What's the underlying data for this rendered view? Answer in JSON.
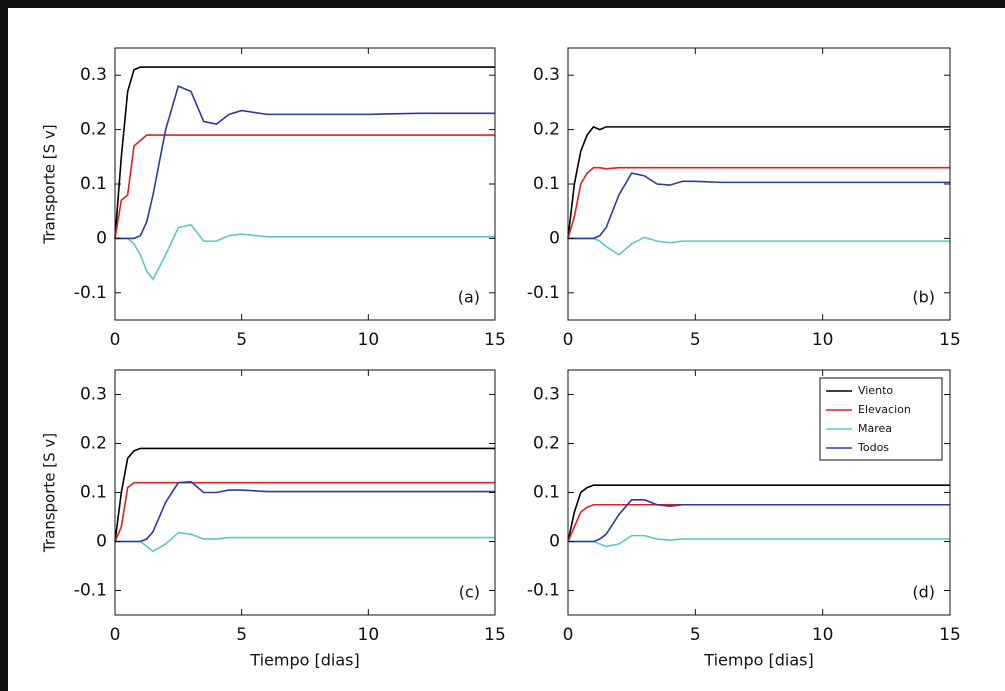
{
  "chart_data": [
    {
      "type": "line",
      "ylabel": "Transporte [S v]",
      "annotation": "(a)",
      "x": [
        0,
        0.25,
        0.5,
        0.75,
        1,
        1.25,
        1.5,
        2,
        2.5,
        3,
        3.5,
        4,
        4.5,
        5,
        6,
        7,
        8,
        10,
        12,
        15
      ],
      "xlim": [
        0,
        15
      ],
      "xticks": [
        0,
        5,
        10,
        15
      ],
      "ylim": [
        -0.15,
        0.35
      ],
      "yticks": [
        -0.1,
        0,
        0.1,
        0.2,
        0.3
      ],
      "series": [
        {
          "name": "Viento",
          "color": "#000000",
          "values": [
            0,
            0.15,
            0.27,
            0.31,
            0.315,
            0.315,
            0.315,
            0.315,
            0.315,
            0.315,
            0.315,
            0.315,
            0.315,
            0.315,
            0.315,
            0.315,
            0.315,
            0.315,
            0.315,
            0.315
          ]
        },
        {
          "name": "Elevacion",
          "color": "#e02020",
          "values": [
            0,
            0.07,
            0.08,
            0.17,
            0.18,
            0.19,
            0.19,
            0.19,
            0.19,
            0.19,
            0.19,
            0.19,
            0.19,
            0.19,
            0.19,
            0.19,
            0.19,
            0.19,
            0.19,
            0.19
          ]
        },
        {
          "name": "Marea",
          "color": "#5bc8c8",
          "values": [
            0,
            0,
            0,
            -0.01,
            -0.03,
            -0.06,
            -0.075,
            -0.03,
            0.02,
            0.025,
            -0.005,
            -0.005,
            0.005,
            0.008,
            0.003,
            0.003,
            0.003,
            0.003,
            0.003,
            0.003
          ]
        },
        {
          "name": "Todos",
          "color": "#2a3aa0",
          "values": [
            0,
            0,
            0,
            0,
            0.005,
            0.03,
            0.08,
            0.2,
            0.28,
            0.27,
            0.215,
            0.21,
            0.228,
            0.235,
            0.228,
            0.228,
            0.228,
            0.228,
            0.23,
            0.23
          ]
        }
      ]
    },
    {
      "type": "line",
      "annotation": "(b)",
      "x": [
        0,
        0.25,
        0.5,
        0.75,
        1,
        1.25,
        1.5,
        2,
        2.5,
        3,
        3.5,
        4,
        4.5,
        5,
        6,
        7,
        8,
        10,
        12,
        15
      ],
      "xlim": [
        0,
        15
      ],
      "xticks": [
        0,
        5,
        10,
        15
      ],
      "ylim": [
        -0.15,
        0.35
      ],
      "yticks": [
        -0.1,
        0,
        0.1,
        0.2,
        0.3
      ],
      "series": [
        {
          "name": "Viento",
          "color": "#000000",
          "values": [
            0,
            0.1,
            0.16,
            0.19,
            0.205,
            0.2,
            0.205,
            0.205,
            0.205,
            0.205,
            0.205,
            0.205,
            0.205,
            0.205,
            0.205,
            0.205,
            0.205,
            0.205,
            0.205,
            0.205
          ]
        },
        {
          "name": "Elevacion",
          "color": "#e02020",
          "values": [
            0,
            0.04,
            0.1,
            0.12,
            0.13,
            0.13,
            0.128,
            0.13,
            0.13,
            0.13,
            0.13,
            0.13,
            0.13,
            0.13,
            0.13,
            0.13,
            0.13,
            0.13,
            0.13,
            0.13
          ]
        },
        {
          "name": "Marea",
          "color": "#5bc8c8",
          "values": [
            0,
            0,
            0,
            0,
            0,
            -0.005,
            -0.015,
            -0.03,
            -0.01,
            0.002,
            -0.005,
            -0.008,
            -0.005,
            -0.005,
            -0.005,
            -0.005,
            -0.005,
            -0.005,
            -0.005,
            -0.005
          ]
        },
        {
          "name": "Todos",
          "color": "#2a3aa0",
          "values": [
            0,
            0,
            0,
            0,
            0,
            0.005,
            0.02,
            0.08,
            0.12,
            0.115,
            0.1,
            0.098,
            0.105,
            0.105,
            0.103,
            0.103,
            0.103,
            0.103,
            0.103,
            0.103
          ]
        }
      ]
    },
    {
      "type": "line",
      "ylabel": "Transporte [S v]",
      "xlabel": "Tiempo [dias]",
      "annotation": "(c)",
      "x": [
        0,
        0.25,
        0.5,
        0.75,
        1,
        1.25,
        1.5,
        2,
        2.5,
        3,
        3.5,
        4,
        4.5,
        5,
        6,
        7,
        8,
        10,
        12,
        15
      ],
      "xlim": [
        0,
        15
      ],
      "xticks": [
        0,
        5,
        10,
        15
      ],
      "ylim": [
        -0.15,
        0.35
      ],
      "yticks": [
        -0.1,
        0,
        0.1,
        0.2,
        0.3
      ],
      "series": [
        {
          "name": "Viento",
          "color": "#000000",
          "values": [
            0,
            0.1,
            0.17,
            0.185,
            0.19,
            0.19,
            0.19,
            0.19,
            0.19,
            0.19,
            0.19,
            0.19,
            0.19,
            0.19,
            0.19,
            0.19,
            0.19,
            0.19,
            0.19,
            0.19
          ]
        },
        {
          "name": "Elevacion",
          "color": "#e02020",
          "values": [
            0,
            0.03,
            0.11,
            0.12,
            0.12,
            0.12,
            0.12,
            0.12,
            0.12,
            0.12,
            0.12,
            0.12,
            0.12,
            0.12,
            0.12,
            0.12,
            0.12,
            0.12,
            0.12,
            0.12
          ]
        },
        {
          "name": "Marea",
          "color": "#5bc8c8",
          "values": [
            0,
            0,
            0,
            0,
            0,
            -0.01,
            -0.02,
            -0.005,
            0.018,
            0.015,
            0.005,
            0.005,
            0.008,
            0.008,
            0.008,
            0.008,
            0.008,
            0.008,
            0.008,
            0.008
          ]
        },
        {
          "name": "Todos",
          "color": "#2a3aa0",
          "values": [
            0,
            0,
            0,
            0,
            0,
            0.005,
            0.02,
            0.08,
            0.12,
            0.122,
            0.1,
            0.1,
            0.105,
            0.105,
            0.102,
            0.102,
            0.102,
            0.102,
            0.102,
            0.102
          ]
        }
      ]
    },
    {
      "type": "line",
      "xlabel": "Tiempo [dias]",
      "annotation": "(d)",
      "legend": "upper right",
      "x": [
        0,
        0.25,
        0.5,
        0.75,
        1,
        1.25,
        1.5,
        2,
        2.5,
        3,
        3.5,
        4,
        4.5,
        5,
        6,
        7,
        8,
        10,
        12,
        15
      ],
      "xlim": [
        0,
        15
      ],
      "xticks": [
        0,
        5,
        10,
        15
      ],
      "ylim": [
        -0.15,
        0.35
      ],
      "yticks": [
        -0.1,
        0,
        0.1,
        0.2,
        0.3
      ],
      "series": [
        {
          "name": "Viento",
          "color": "#000000",
          "values": [
            0,
            0.06,
            0.1,
            0.11,
            0.115,
            0.115,
            0.115,
            0.115,
            0.115,
            0.115,
            0.115,
            0.115,
            0.115,
            0.115,
            0.115,
            0.115,
            0.115,
            0.115,
            0.115,
            0.115
          ]
        },
        {
          "name": "Elevacion",
          "color": "#e02020",
          "values": [
            0,
            0.03,
            0.06,
            0.07,
            0.075,
            0.075,
            0.075,
            0.075,
            0.075,
            0.075,
            0.075,
            0.075,
            0.075,
            0.075,
            0.075,
            0.075,
            0.075,
            0.075,
            0.075,
            0.075
          ]
        },
        {
          "name": "Marea",
          "color": "#5bc8c8",
          "values": [
            0,
            0,
            0,
            0,
            0,
            -0.005,
            -0.01,
            -0.005,
            0.012,
            0.012,
            0.005,
            0.003,
            0.005,
            0.005,
            0.005,
            0.005,
            0.005,
            0.005,
            0.005,
            0.005
          ]
        },
        {
          "name": "Todos",
          "color": "#2a3aa0",
          "values": [
            0,
            0,
            0,
            0,
            0,
            0.005,
            0.015,
            0.055,
            0.085,
            0.085,
            0.075,
            0.072,
            0.075,
            0.075,
            0.075,
            0.075,
            0.075,
            0.075,
            0.075,
            0.075
          ]
        }
      ]
    }
  ]
}
